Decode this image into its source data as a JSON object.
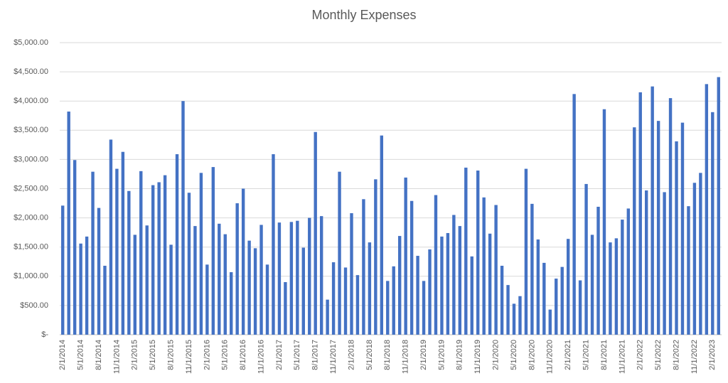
{
  "chart_data": {
    "type": "bar",
    "title": "Monthly Expenses",
    "categories": [
      "2/1/2014",
      null,
      null,
      "5/1/2014",
      null,
      null,
      "8/1/2014",
      null,
      null,
      "11/1/2014",
      null,
      null,
      "2/1/2015",
      null,
      null,
      "5/1/2015",
      null,
      null,
      "8/1/2015",
      null,
      null,
      "11/1/2015",
      null,
      null,
      "2/1/2016",
      null,
      null,
      "5/1/2016",
      null,
      null,
      "8/1/2016",
      null,
      null,
      "11/1/2016",
      null,
      null,
      "2/1/2017",
      null,
      null,
      "5/1/2017",
      null,
      null,
      "8/1/2017",
      null,
      null,
      "11/1/2017",
      null,
      null,
      "2/1/2018",
      null,
      null,
      "5/1/2018",
      null,
      null,
      "8/1/2018",
      null,
      null,
      "11/1/2018",
      null,
      null,
      "2/1/2019",
      null,
      null,
      "5/1/2019",
      null,
      null,
      "8/1/2019",
      null,
      null,
      "11/1/2019",
      null,
      null,
      "2/1/2020",
      null,
      null,
      "5/1/2020",
      null,
      null,
      "8/1/2020",
      null,
      null,
      "11/1/2020",
      null,
      null,
      "2/1/2021",
      null,
      null,
      "5/1/2021",
      null,
      null,
      "8/1/2021",
      null,
      null,
      "11/1/2021",
      null,
      null,
      "2/1/2022",
      null,
      null,
      "5/1/2022",
      null,
      null,
      "8/1/2022",
      null,
      null,
      "11/1/2022",
      null,
      null,
      "2/1/2023",
      null
    ],
    "values": [
      2210,
      3820,
      2990,
      1560,
      1680,
      2790,
      2170,
      1180,
      3340,
      2840,
      3130,
      2460,
      1710,
      2800,
      1870,
      2560,
      2610,
      2730,
      1540,
      3090,
      4000,
      2430,
      1860,
      2770,
      1200,
      2870,
      1900,
      1720,
      1070,
      2250,
      2500,
      1610,
      1480,
      1880,
      1200,
      3090,
      1920,
      900,
      1930,
      1950,
      1490,
      2000,
      3470,
      2030,
      600,
      1240,
      2790,
      1150,
      2080,
      1020,
      2320,
      1580,
      2660,
      3410,
      920,
      1170,
      1690,
      2690,
      2290,
      1350,
      920,
      1460,
      2390,
      1680,
      1740,
      2050,
      1860,
      2860,
      1340,
      2810,
      2350,
      1730,
      2220,
      1180,
      850,
      530,
      660,
      2840,
      2240,
      1630,
      1230,
      430,
      960,
      1160,
      1640,
      4120,
      930,
      2580,
      1710,
      2190,
      3860,
      1580,
      1650,
      1970,
      2160,
      3550,
      4150,
      2470,
      4250,
      3660,
      2440,
      4050,
      3310,
      3630,
      2200,
      2600,
      2770,
      4290,
      3810,
      4410
    ],
    "color": "#4472c4",
    "ylim": [
      0,
      5000
    ],
    "yticks": [
      {
        "value": 0,
        "label": "$-"
      },
      {
        "value": 500,
        "label": "$500.00"
      },
      {
        "value": 1000,
        "label": "$1,000.00"
      },
      {
        "value": 1500,
        "label": "$1,500.00"
      },
      {
        "value": 2000,
        "label": "$2,000.00"
      },
      {
        "value": 2500,
        "label": "$2,500.00"
      },
      {
        "value": 3000,
        "label": "$3,000.00"
      },
      {
        "value": 3500,
        "label": "$3,500.00"
      },
      {
        "value": 4000,
        "label": "$4,000.00"
      },
      {
        "value": 4500,
        "label": "$4,500.00"
      },
      {
        "value": 5000,
        "label": "$5,000.00"
      }
    ],
    "grid": true
  }
}
